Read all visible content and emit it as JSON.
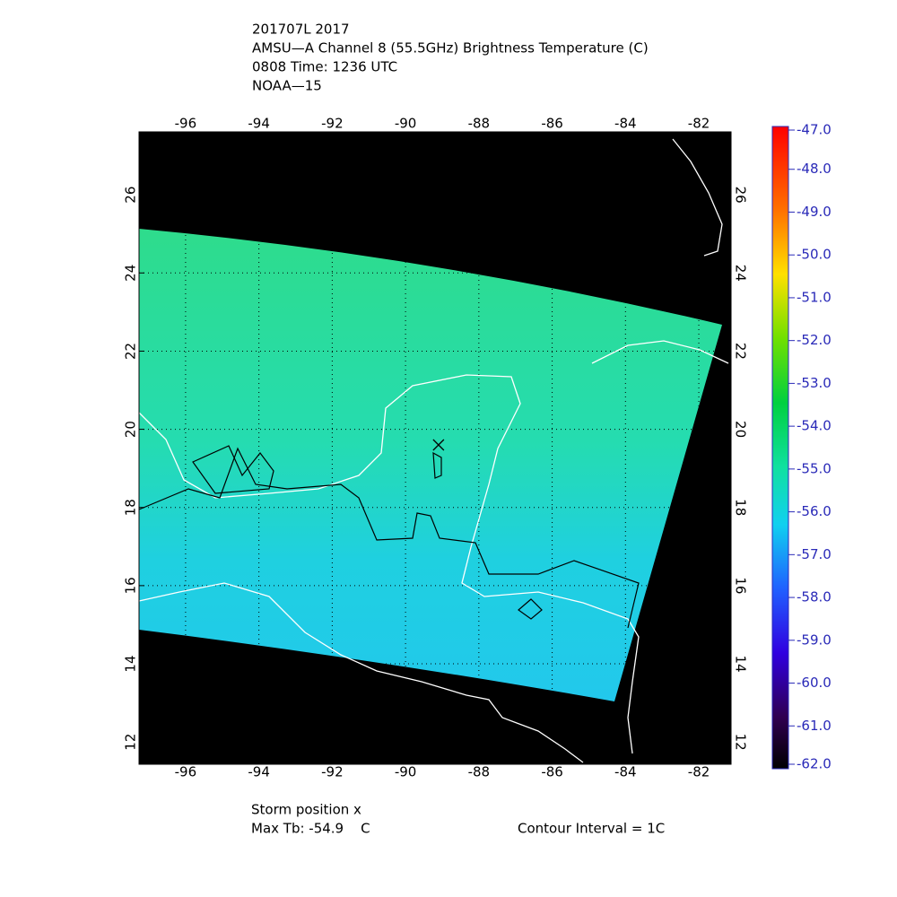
{
  "chart_data": {
    "type": "map",
    "title_lines": [
      "201707L 2017",
      "AMSU—A Channel 8 (55.5GHz) Brightness Temperature (C)",
      "0808 Time: 1236 UTC",
      "NOAA—15"
    ],
    "xlim": [
      -97.27,
      -81.12
    ],
    "ylim": [
      11.43,
      27.61
    ],
    "xticks": [
      -96,
      -94,
      -92,
      -90,
      -88,
      -86,
      -84,
      -82
    ],
    "yticks": [
      12,
      14,
      16,
      18,
      20,
      22,
      24,
      26
    ],
    "grid": true,
    "storm": {
      "lon": -89.1,
      "lat": 19.6
    },
    "colorbar": {
      "lim": [
        -62,
        -47
      ],
      "ticks": [
        {
          "value": -47,
          "label": "-47.0"
        },
        {
          "value": -48,
          "label": "-48.0"
        },
        {
          "value": -49,
          "label": "-49.0"
        },
        {
          "value": -50,
          "label": "-50.0"
        },
        {
          "value": -51,
          "label": "-51.0"
        },
        {
          "value": -52,
          "label": "-52.0"
        },
        {
          "value": -53,
          "label": "-53.0"
        },
        {
          "value": -54,
          "label": "-54.0"
        },
        {
          "value": -55,
          "label": "-55.0"
        },
        {
          "value": -56,
          "label": "-56.0"
        },
        {
          "value": -57,
          "label": "-57.0"
        },
        {
          "value": -58,
          "label": "-58.0"
        },
        {
          "value": -59,
          "label": "-59.0"
        },
        {
          "value": -60,
          "label": "-60.0"
        },
        {
          "value": -61,
          "label": "-61.0"
        },
        {
          "value": -62,
          "label": "-62.0"
        }
      ]
    },
    "footer": {
      "storm_label": "Storm position x",
      "max_tb": "Max Tb: -54.9    C",
      "contour": "Contour Interval = 1C"
    }
  }
}
